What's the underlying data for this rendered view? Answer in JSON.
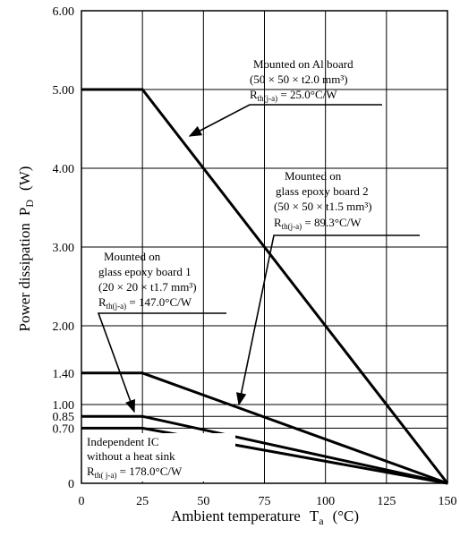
{
  "chart_data": {
    "type": "line",
    "xlabel": "Ambient temperature",
    "xlabel_symbol": "T",
    "xlabel_subscript": "a",
    "xlabel_unit": "(°C)",
    "ylabel": "Power dissipation",
    "ylabel_symbol": "P",
    "ylabel_subscript": "D",
    "ylabel_unit": "(W)",
    "xlim": [
      0,
      150
    ],
    "ylim": [
      0,
      6
    ],
    "x_ticks": [
      0,
      25,
      50,
      75,
      100,
      125,
      150
    ],
    "x_tick_labels": [
      "0",
      "25",
      "50",
      "75",
      "100",
      "125",
      "150"
    ],
    "y_ticks": [
      0,
      0.7,
      0.85,
      1.0,
      1.4,
      2.0,
      3.0,
      4.0,
      5.0,
      6.0
    ],
    "y_tick_labels": [
      "0",
      "0.70",
      "0.85",
      "1.00",
      "1.40",
      "2.00",
      "3.00",
      "4.00",
      "5.00",
      "6.00"
    ],
    "grid": true,
    "series": [
      {
        "x": [
          0,
          25,
          150
        ],
        "y": [
          5.0,
          5.0,
          0
        ]
      },
      {
        "x": [
          0,
          25,
          150
        ],
        "y": [
          1.4,
          1.4,
          0
        ]
      },
      {
        "x": [
          0,
          25,
          150
        ],
        "y": [
          0.85,
          0.85,
          0
        ]
      },
      {
        "x": [
          0,
          25,
          150
        ],
        "y": [
          0.7,
          0.7,
          0
        ]
      }
    ],
    "annotations": [
      {
        "lines": [
          "Mounted on Al board",
          "(50 × 50 × t2.0 mm³)"
        ],
        "rth_symbol": "R",
        "rth_subscript": "th(j-a)",
        "rth_value": " = 25.0°C/W"
      },
      {
        "lines": [
          "Mounted on",
          "glass epoxy board 2",
          "(50 × 50 × t1.5 mm³)"
        ],
        "rth_symbol": "R",
        "rth_subscript": "th(j-a)",
        "rth_value": " = 89.3°C/W"
      },
      {
        "lines": [
          "Mounted on",
          "glass epoxy board 1",
          "(20 × 20 × t1.7 mm³)"
        ],
        "rth_symbol": "R",
        "rth_subscript": "th(j-a)",
        "rth_value": " = 147.0°C/W"
      },
      {
        "lines": [
          "Independent IC",
          "without a heat sink"
        ],
        "rth_symbol": "R",
        "rth_subscript": "th( j-a)",
        "rth_value": " = 178.0°C/W"
      }
    ]
  }
}
